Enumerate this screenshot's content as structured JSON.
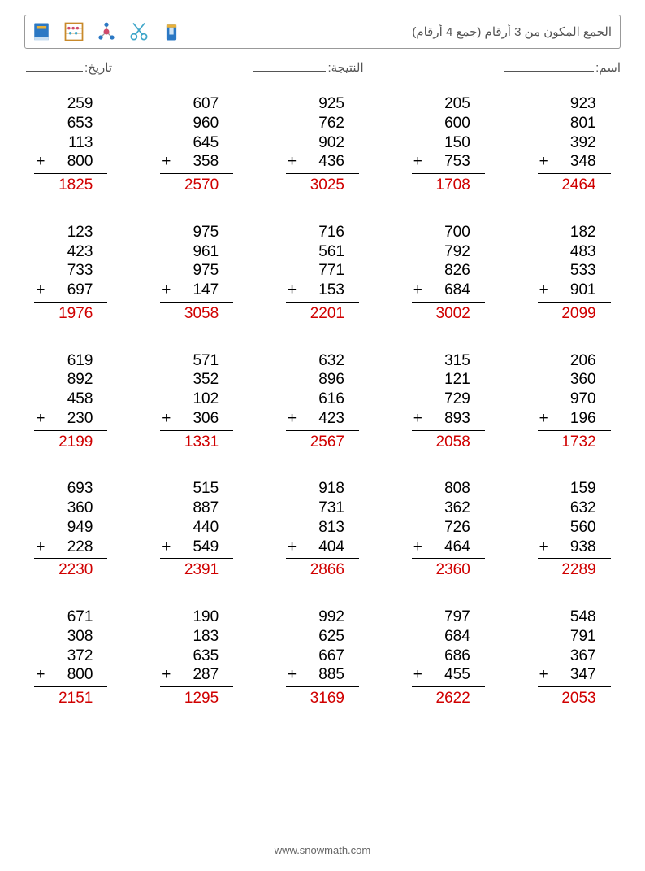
{
  "title": "الجمع المكون من 3 أرقام (جمع 4 أرقام)",
  "labels": {
    "name": "اسم:",
    "score": "النتيجة:",
    "date": "تاريخ:"
  },
  "line_widths": {
    "name": 110,
    "score": 90,
    "date": 70
  },
  "icon_colors": {
    "book": "#2b78c4",
    "abacus": "#c98a2b",
    "molecule": "#d04a6a",
    "scissors": "#3fa6c9",
    "sharpener": "#2b78c4"
  },
  "answer_color": "#d00000",
  "footer": "www.snowmath.com",
  "problems": [
    {
      "addends": [
        259,
        653,
        113,
        800
      ],
      "answer": 1825
    },
    {
      "addends": [
        607,
        960,
        645,
        358
      ],
      "answer": 2570
    },
    {
      "addends": [
        925,
        762,
        902,
        436
      ],
      "answer": 3025
    },
    {
      "addends": [
        205,
        600,
        150,
        753
      ],
      "answer": 1708
    },
    {
      "addends": [
        923,
        801,
        392,
        348
      ],
      "answer": 2464
    },
    {
      "addends": [
        123,
        423,
        733,
        697
      ],
      "answer": 1976
    },
    {
      "addends": [
        975,
        961,
        975,
        147
      ],
      "answer": 3058
    },
    {
      "addends": [
        716,
        561,
        771,
        153
      ],
      "answer": 2201
    },
    {
      "addends": [
        700,
        792,
        826,
        684
      ],
      "answer": 3002
    },
    {
      "addends": [
        182,
        483,
        533,
        901
      ],
      "answer": 2099
    },
    {
      "addends": [
        619,
        892,
        458,
        230
      ],
      "answer": 2199
    },
    {
      "addends": [
        571,
        352,
        102,
        306
      ],
      "answer": 1331
    },
    {
      "addends": [
        632,
        896,
        616,
        423
      ],
      "answer": 2567
    },
    {
      "addends": [
        315,
        121,
        729,
        893
      ],
      "answer": 2058
    },
    {
      "addends": [
        206,
        360,
        970,
        196
      ],
      "answer": 1732
    },
    {
      "addends": [
        693,
        360,
        949,
        228
      ],
      "answer": 2230
    },
    {
      "addends": [
        515,
        887,
        440,
        549
      ],
      "answer": 2391
    },
    {
      "addends": [
        918,
        731,
        813,
        404
      ],
      "answer": 2866
    },
    {
      "addends": [
        808,
        362,
        726,
        464
      ],
      "answer": 2360
    },
    {
      "addends": [
        159,
        632,
        560,
        938
      ],
      "answer": 2289
    },
    {
      "addends": [
        671,
        308,
        372,
        800
      ],
      "answer": 2151
    },
    {
      "addends": [
        190,
        183,
        635,
        287
      ],
      "answer": 1295
    },
    {
      "addends": [
        992,
        625,
        667,
        885
      ],
      "answer": 3169
    },
    {
      "addends": [
        797,
        684,
        686,
        455
      ],
      "answer": 2622
    },
    {
      "addends": [
        548,
        791,
        367,
        347
      ],
      "answer": 2053
    }
  ]
}
